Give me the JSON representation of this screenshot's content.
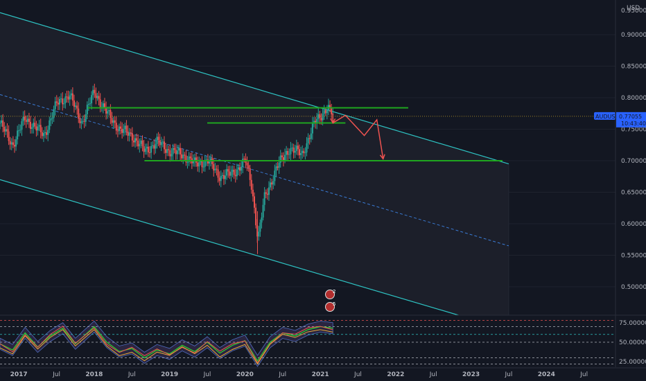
{
  "chart_data": {
    "type": "candlestick",
    "symbol": "AUDUSD",
    "currency": "USD",
    "last_price": "0.77055",
    "countdown": "10:43:40",
    "y_ticks": [
      "0.90000",
      "0.85000",
      "0.80000",
      "0.75000",
      "0.70000",
      "0.65000",
      "0.60000",
      "0.55000",
      "0.50000"
    ],
    "y_top_label": "0.95000",
    "ylim": [
      0.455,
      0.955
    ],
    "x_ticks": [
      {
        "label": "2017",
        "bold": true
      },
      {
        "label": "Jul",
        "bold": false
      },
      {
        "label": "2018",
        "bold": true
      },
      {
        "label": "Jul",
        "bold": false
      },
      {
        "label": "2019",
        "bold": true
      },
      {
        "label": "Jul",
        "bold": false
      },
      {
        "label": "2020",
        "bold": true
      },
      {
        "label": "Jul",
        "bold": false
      },
      {
        "label": "2021",
        "bold": true
      },
      {
        "label": "Jul",
        "bold": false
      },
      {
        "label": "2022",
        "bold": true
      },
      {
        "label": "Jul",
        "bold": false
      },
      {
        "label": "2023",
        "bold": true
      },
      {
        "label": "Jul",
        "bold": false
      },
      {
        "label": "2024",
        "bold": true
      },
      {
        "label": "Jul",
        "bold": false
      }
    ],
    "xlim": [
      "2016-10",
      "2024-12"
    ],
    "price_path": [
      [
        "2016-10",
        0.76
      ],
      [
        "2016-12",
        0.725
      ],
      [
        "2017-02",
        0.768
      ],
      [
        "2017-05",
        0.74
      ],
      [
        "2017-07",
        0.79
      ],
      [
        "2017-09",
        0.805
      ],
      [
        "2017-11",
        0.76
      ],
      [
        "2018-01",
        0.81
      ],
      [
        "2018-03",
        0.775
      ],
      [
        "2018-05",
        0.75
      ],
      [
        "2018-07",
        0.74
      ],
      [
        "2018-09",
        0.715
      ],
      [
        "2018-11",
        0.73
      ],
      [
        "2019-01",
        0.715
      ],
      [
        "2019-03",
        0.71
      ],
      [
        "2019-05",
        0.695
      ],
      [
        "2019-07",
        0.7
      ],
      [
        "2019-09",
        0.675
      ],
      [
        "2019-11",
        0.68
      ],
      [
        "2020-01",
        0.7
      ],
      [
        "2020-02",
        0.66
      ],
      [
        "2020-03",
        0.575
      ],
      [
        "2020-04",
        0.64
      ],
      [
        "2020-06",
        0.69
      ],
      [
        "2020-08",
        0.72
      ],
      [
        "2020-10",
        0.71
      ],
      [
        "2020-12",
        0.76
      ],
      [
        "2021-02",
        0.785
      ],
      [
        "2021-03",
        0.77
      ]
    ],
    "channel": {
      "upper": [
        [
          "2016-10",
          0.935
        ],
        [
          "2023-07",
          0.695
        ]
      ],
      "lower": [
        [
          "2016-10",
          0.67
        ],
        [
          "2022-11",
          0.455
        ]
      ],
      "mid": [
        [
          "2016-10",
          0.805
        ],
        [
          "2023-07",
          0.565
        ]
      ]
    },
    "horizontal_levels": [
      {
        "price": 0.784,
        "from": "2017-12",
        "to": "2022-03",
        "color": "#1fa61f"
      },
      {
        "price": 0.76,
        "from": "2019-07",
        "to": "2021-05",
        "color": "#1fa61f"
      },
      {
        "price": 0.7,
        "from": "2018-09",
        "to": "2023-06",
        "color": "#1fa61f"
      }
    ],
    "projection_path": [
      [
        "2021-03",
        0.76
      ],
      [
        "2021-05",
        0.772
      ],
      [
        "2021-08",
        0.74
      ],
      [
        "2021-10",
        0.765
      ],
      [
        "2021-11",
        0.703
      ]
    ],
    "oscillator": {
      "y_ticks": [
        "75.00000",
        "50.00000",
        "25.00000"
      ],
      "ylim": [
        18,
        82
      ],
      "levels": [
        78,
        70,
        60,
        50,
        30,
        22
      ],
      "values": [
        [
          "2016-10",
          48
        ],
        [
          "2016-12",
          40
        ],
        [
          "2017-02",
          62
        ],
        [
          "2017-04",
          44
        ],
        [
          "2017-06",
          58
        ],
        [
          "2017-08",
          68
        ],
        [
          "2017-10",
          48
        ],
        [
          "2018-01",
          70
        ],
        [
          "2018-03",
          50
        ],
        [
          "2018-05",
          38
        ],
        [
          "2018-07",
          42
        ],
        [
          "2018-09",
          30
        ],
        [
          "2018-11",
          40
        ],
        [
          "2019-01",
          35
        ],
        [
          "2019-03",
          46
        ],
        [
          "2019-05",
          38
        ],
        [
          "2019-07",
          50
        ],
        [
          "2019-09",
          36
        ],
        [
          "2019-11",
          46
        ],
        [
          "2020-01",
          52
        ],
        [
          "2020-03",
          26
        ],
        [
          "2020-05",
          50
        ],
        [
          "2020-07",
          62
        ],
        [
          "2020-09",
          58
        ],
        [
          "2020-11",
          66
        ],
        [
          "2021-01",
          70
        ],
        [
          "2021-03",
          68
        ]
      ]
    },
    "idea_markers": [
      "2",
      "5"
    ],
    "colors": {
      "background": "#131722",
      "up": "#26a69a",
      "down": "#ef5350",
      "channel": "#2ec4c4",
      "mid": "#3a7bd5",
      "level": "#1fa61f",
      "projection": "#ef5350",
      "price_tag": "#2962ff",
      "grid": "#1e222d"
    }
  }
}
